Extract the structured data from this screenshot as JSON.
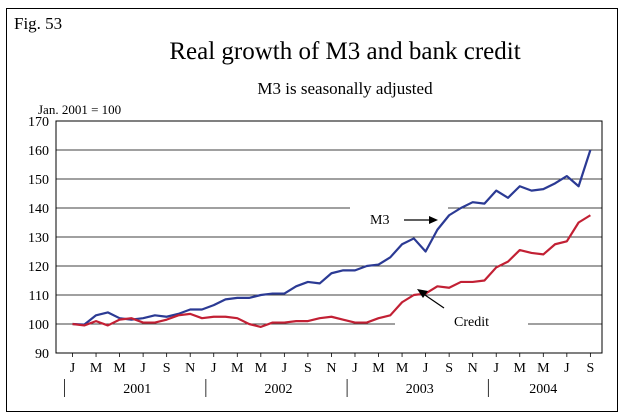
{
  "figure": {
    "label": "Fig. 53",
    "title": "Real growth of M3 and bank credit",
    "subtitle": "M3 is seasonally adjusted"
  },
  "chart_data": {
    "type": "line",
    "title": "Real growth of M3 and bank credit",
    "subtitle": "M3 is seasonally adjusted",
    "index_note": "Jan. 2001 = 100",
    "ylim": [
      90,
      170
    ],
    "y_ticks": [
      90,
      100,
      110,
      120,
      130,
      140,
      150,
      160,
      170
    ],
    "grid": "horizontal",
    "x_month_ticks": [
      "J",
      "M",
      "M",
      "J",
      "S",
      "N",
      "J",
      "M",
      "M",
      "J",
      "S",
      "N",
      "J",
      "M",
      "M",
      "J",
      "S",
      "N",
      "J",
      "M",
      "M",
      "J",
      "S"
    ],
    "years": [
      "2001",
      "2002",
      "2003",
      "2004"
    ],
    "x_start": "2001-01",
    "x_end": "2004-09",
    "series": [
      {
        "name": "M3",
        "color": "#2b3a94",
        "values": [
          100,
          99.8,
          103,
          104,
          102,
          101.5,
          102,
          103,
          102.5,
          103.5,
          105,
          105,
          106.5,
          108.5,
          109,
          109,
          110,
          110.5,
          110.5,
          113,
          114.5,
          114,
          117.5,
          118.5,
          118.5,
          120,
          120.5,
          123,
          127.5,
          129.5,
          125,
          132.5,
          137.5,
          140,
          142,
          141.5,
          146,
          143.5,
          147.5,
          146,
          146.5,
          148.5,
          151,
          147.5,
          160
        ]
      },
      {
        "name": "Credit",
        "color": "#c22034",
        "values": [
          100,
          99.5,
          101,
          99.5,
          101.5,
          102,
          100.5,
          100.5,
          101.5,
          103,
          103.5,
          102,
          102.5,
          102.5,
          102,
          100,
          99,
          100.5,
          100.5,
          101,
          101,
          102,
          102.5,
          101.5,
          100.5,
          100.5,
          102,
          103,
          107.5,
          110,
          110.5,
          113,
          112.5,
          114.5,
          114.5,
          115,
          119.5,
          121.5,
          125.5,
          124.5,
          124,
          127.5,
          128.5,
          135,
          137.5
        ]
      }
    ]
  }
}
